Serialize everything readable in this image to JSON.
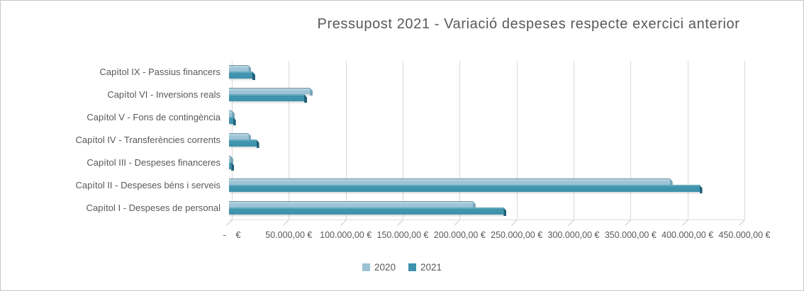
{
  "chart_data": {
    "type": "bar",
    "orientation": "horizontal",
    "style": "3d",
    "title": "Pressupost 2021 - Variació despeses respecte exercici anterior",
    "categories": [
      "Capítol IX - Passius financers",
      "Capítol VI - Inversions reals",
      "Capítol V - Fons de contingència",
      "Capítol IV - Transferències corrents",
      "Capítol III - Despeses financeres",
      "Capítol II - Despeses béns i serveis",
      "Capítol I - Despeses de personal"
    ],
    "series": [
      {
        "name": "2020",
        "values": [
          17000,
          71000,
          2500,
          17000,
          1000,
          387000,
          214000
        ],
        "color": "#9cc3d5",
        "color_top": "#7f99a4",
        "color_mid": "#aed0de",
        "color_cap": "#78a6b9"
      },
      {
        "name": "2021",
        "values": [
          20500,
          66000,
          3500,
          24000,
          2000,
          413000,
          241000
        ],
        "color": "#3e92ac",
        "color_top": "#63a8bd",
        "color_mid": "#4195ae",
        "color_cap": "#1e6078"
      }
    ],
    "x_axis": {
      "min": 0,
      "max": 450000,
      "step": 50000,
      "unit": "€",
      "tick_labels": [
        "-    €",
        "50.000,00 €",
        "100.000,00 €",
        "150.000,00 €",
        "200.000,00 €",
        "250.000,00 €",
        "300.000,00 €",
        "350.000,00 €",
        "400.000,00 €",
        "450.000,00 €"
      ]
    },
    "legend": {
      "position": "bottom",
      "entries": [
        "2020",
        "2021"
      ]
    },
    "grid": true,
    "colors": {
      "grid_line": "#d9d9d9",
      "text": "#595959",
      "background": "#ffffff",
      "border": "#c8c8c8"
    }
  }
}
